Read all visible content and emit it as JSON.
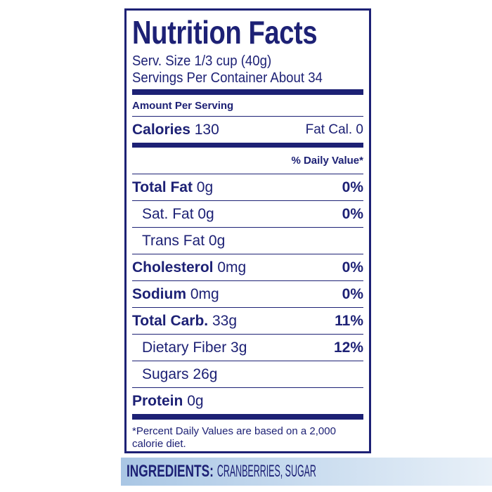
{
  "header": {
    "title": "Nutrition Facts",
    "serving_size": "Serv. Size 1/3 cup (40g)",
    "servings": "Servings Per Container About 34"
  },
  "amount_per_serving": "Amount Per Serving",
  "calories": {
    "label": "Calories",
    "value": "130",
    "fat_calories": "Fat Cal. 0"
  },
  "daily_value_header": "% Daily Value*",
  "nutrients": [
    {
      "name": "Total Fat",
      "amount": "0g",
      "dv": "0%"
    },
    {
      "name": "Sat. Fat",
      "amount": "0g",
      "dv": "0%"
    },
    {
      "name": "Trans Fat",
      "amount": "0g"
    },
    {
      "name": "Cholesterol",
      "amount": "0mg",
      "dv": "0%"
    },
    {
      "name": "Sodium",
      "amount": "0mg",
      "dv": "0%"
    },
    {
      "name": "Total Carb.",
      "amount": "33g",
      "dv": "11%"
    },
    {
      "name": "Dietary Fiber",
      "amount": "3g",
      "dv": "12%"
    },
    {
      "name": "Sugars",
      "amount": "26g"
    },
    {
      "name": "Protein",
      "amount": "0g"
    }
  ],
  "footnote": "*Percent Daily Values are based on a 2,000 calorie diet.",
  "ingredients": {
    "label": "INGREDIENTS:",
    "text": "CRANBERRIES, SUGAR"
  }
}
